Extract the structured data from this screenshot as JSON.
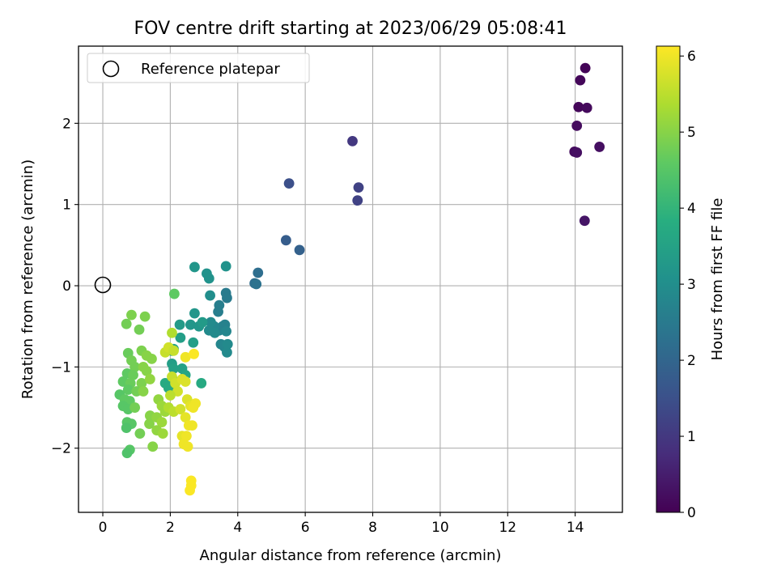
{
  "chart_data": {
    "type": "scatter",
    "title": "FOV centre drift starting at 2023/06/29 05:08:41",
    "xlabel": "Angular distance from reference (arcmin)",
    "ylabel": "Rotation from reference (arcmin)",
    "xlim": [
      -0.72,
      15.4
    ],
    "ylim": [
      -2.79,
      2.95
    ],
    "xticks": [
      0,
      2,
      4,
      6,
      8,
      10,
      12,
      14
    ],
    "yticks": [
      -2,
      -1,
      0,
      1,
      2
    ],
    "grid": true,
    "legend": {
      "placement": "upper-left",
      "entries": [
        "Reference platepar"
      ]
    },
    "reference_point": {
      "x": 0,
      "y": 0
    },
    "colorbar": {
      "label": "Hours from first FF file",
      "colormap": "viridis",
      "range": [
        0,
        6.13
      ],
      "ticks": [
        0,
        1,
        2,
        3,
        4,
        5,
        6
      ]
    },
    "points": [
      {
        "x": 14.3,
        "y": 2.68,
        "h": 0.05
      },
      {
        "x": 14.15,
        "y": 2.53,
        "h": 0.1
      },
      {
        "x": 14.1,
        "y": 2.2,
        "h": 0.1
      },
      {
        "x": 14.35,
        "y": 2.19,
        "h": 0.15
      },
      {
        "x": 14.05,
        "y": 1.97,
        "h": 0.2
      },
      {
        "x": 13.98,
        "y": 1.65,
        "h": 0.2
      },
      {
        "x": 14.05,
        "y": 1.64,
        "h": 0.25
      },
      {
        "x": 14.72,
        "y": 1.71,
        "h": 0.25
      },
      {
        "x": 14.28,
        "y": 0.8,
        "h": 0.35
      },
      {
        "x": 7.4,
        "y": 1.78,
        "h": 1.0
      },
      {
        "x": 7.58,
        "y": 1.21,
        "h": 1.2
      },
      {
        "x": 7.55,
        "y": 1.05,
        "h": 1.2
      },
      {
        "x": 5.52,
        "y": 1.26,
        "h": 1.5
      },
      {
        "x": 5.43,
        "y": 0.56,
        "h": 1.8
      },
      {
        "x": 5.83,
        "y": 0.44,
        "h": 1.9
      },
      {
        "x": 4.6,
        "y": 0.16,
        "h": 2.2
      },
      {
        "x": 4.5,
        "y": 0.03,
        "h": 2.2
      },
      {
        "x": 4.55,
        "y": 0.02,
        "h": 2.3
      },
      {
        "x": 3.65,
        "y": -0.09,
        "h": 2.5
      },
      {
        "x": 3.68,
        "y": -0.15,
        "h": 2.5
      },
      {
        "x": 3.45,
        "y": -0.24,
        "h": 2.6
      },
      {
        "x": 3.42,
        "y": -0.32,
        "h": 2.6
      },
      {
        "x": 3.62,
        "y": -0.48,
        "h": 2.7
      },
      {
        "x": 3.55,
        "y": -0.5,
        "h": 2.7
      },
      {
        "x": 3.45,
        "y": -0.55,
        "h": 2.7
      },
      {
        "x": 3.66,
        "y": -0.56,
        "h": 2.8
      },
      {
        "x": 3.3,
        "y": -0.5,
        "h": 2.8
      },
      {
        "x": 3.2,
        "y": -0.45,
        "h": 2.9
      },
      {
        "x": 3.15,
        "y": -0.55,
        "h": 2.9
      },
      {
        "x": 3.5,
        "y": -0.72,
        "h": 2.8
      },
      {
        "x": 3.6,
        "y": -0.75,
        "h": 2.8
      },
      {
        "x": 3.68,
        "y": -0.82,
        "h": 2.9
      },
      {
        "x": 3.7,
        "y": -0.72,
        "h": 2.9
      },
      {
        "x": 3.32,
        "y": -0.58,
        "h": 2.9
      },
      {
        "x": 3.65,
        "y": 0.24,
        "h": 3.1
      },
      {
        "x": 3.08,
        "y": 0.15,
        "h": 3.1
      },
      {
        "x": 3.15,
        "y": 0.09,
        "h": 3.1
      },
      {
        "x": 2.72,
        "y": 0.23,
        "h": 3.2
      },
      {
        "x": 3.18,
        "y": -0.12,
        "h": 3.0
      },
      {
        "x": 2.72,
        "y": -0.34,
        "h": 3.2
      },
      {
        "x": 2.6,
        "y": -0.48,
        "h": 3.2
      },
      {
        "x": 2.85,
        "y": -0.5,
        "h": 3.2
      },
      {
        "x": 2.95,
        "y": -0.45,
        "h": 3.3
      },
      {
        "x": 2.28,
        "y": -0.48,
        "h": 3.3
      },
      {
        "x": 2.3,
        "y": -0.64,
        "h": 3.4
      },
      {
        "x": 2.68,
        "y": -0.7,
        "h": 3.4
      },
      {
        "x": 2.05,
        "y": -0.8,
        "h": 3.5
      },
      {
        "x": 2.1,
        "y": -0.78,
        "h": 3.5
      },
      {
        "x": 2.05,
        "y": -0.96,
        "h": 3.4
      },
      {
        "x": 2.1,
        "y": -1.02,
        "h": 3.5
      },
      {
        "x": 2.35,
        "y": -1.02,
        "h": 3.5
      },
      {
        "x": 2.45,
        "y": -1.1,
        "h": 3.6
      },
      {
        "x": 2.92,
        "y": -1.2,
        "h": 3.7
      },
      {
        "x": 1.85,
        "y": -1.2,
        "h": 3.7
      },
      {
        "x": 1.95,
        "y": -1.26,
        "h": 3.7
      },
      {
        "x": 2.15,
        "y": -1.18,
        "h": 3.8
      },
      {
        "x": 2.12,
        "y": -0.1,
        "h": 4.6
      },
      {
        "x": 2.05,
        "y": -0.58,
        "h": 5.4
      },
      {
        "x": 0.85,
        "y": -0.36,
        "h": 4.9
      },
      {
        "x": 1.25,
        "y": -0.38,
        "h": 4.9
      },
      {
        "x": 0.7,
        "y": -0.47,
        "h": 4.8
      },
      {
        "x": 1.08,
        "y": -0.54,
        "h": 4.8
      },
      {
        "x": 0.75,
        "y": -0.83,
        "h": 4.7
      },
      {
        "x": 0.85,
        "y": -0.92,
        "h": 4.8
      },
      {
        "x": 1.15,
        "y": -0.8,
        "h": 4.9
      },
      {
        "x": 1.3,
        "y": -0.86,
        "h": 5.0
      },
      {
        "x": 1.45,
        "y": -0.9,
        "h": 5.0
      },
      {
        "x": 0.95,
        "y": -1.0,
        "h": 4.8
      },
      {
        "x": 1.2,
        "y": -1.0,
        "h": 5.0
      },
      {
        "x": 0.72,
        "y": -1.08,
        "h": 4.6
      },
      {
        "x": 0.9,
        "y": -1.1,
        "h": 4.7
      },
      {
        "x": 1.3,
        "y": -1.05,
        "h": 5.0
      },
      {
        "x": 0.6,
        "y": -1.18,
        "h": 4.6
      },
      {
        "x": 0.82,
        "y": -1.2,
        "h": 4.7
      },
      {
        "x": 1.15,
        "y": -1.2,
        "h": 4.9
      },
      {
        "x": 1.4,
        "y": -1.15,
        "h": 5.1
      },
      {
        "x": 0.75,
        "y": -1.28,
        "h": 4.6
      },
      {
        "x": 1.0,
        "y": -1.3,
        "h": 4.8
      },
      {
        "x": 1.2,
        "y": -1.3,
        "h": 5.0
      },
      {
        "x": 0.5,
        "y": -1.34,
        "h": 4.5
      },
      {
        "x": 0.65,
        "y": -1.4,
        "h": 4.6
      },
      {
        "x": 0.8,
        "y": -1.42,
        "h": 4.6
      },
      {
        "x": 0.6,
        "y": -1.48,
        "h": 4.5
      },
      {
        "x": 0.75,
        "y": -1.52,
        "h": 4.5
      },
      {
        "x": 0.95,
        "y": -1.5,
        "h": 4.8
      },
      {
        "x": 1.4,
        "y": -1.6,
        "h": 5.0
      },
      {
        "x": 1.38,
        "y": -1.7,
        "h": 5.0
      },
      {
        "x": 0.72,
        "y": -1.68,
        "h": 4.5
      },
      {
        "x": 0.85,
        "y": -1.7,
        "h": 4.5
      },
      {
        "x": 0.7,
        "y": -1.75,
        "h": 4.4
      },
      {
        "x": 1.1,
        "y": -1.82,
        "h": 4.8
      },
      {
        "x": 0.8,
        "y": -2.02,
        "h": 4.5
      },
      {
        "x": 0.72,
        "y": -2.06,
        "h": 4.4
      },
      {
        "x": 1.48,
        "y": -1.98,
        "h": 5.0
      },
      {
        "x": 1.65,
        "y": -1.4,
        "h": 5.1
      },
      {
        "x": 1.75,
        "y": -1.48,
        "h": 5.2
      },
      {
        "x": 1.85,
        "y": -1.55,
        "h": 5.2
      },
      {
        "x": 1.6,
        "y": -1.62,
        "h": 5.1
      },
      {
        "x": 1.75,
        "y": -1.68,
        "h": 5.2
      },
      {
        "x": 1.6,
        "y": -1.78,
        "h": 5.1
      },
      {
        "x": 1.78,
        "y": -1.82,
        "h": 5.2
      },
      {
        "x": 1.85,
        "y": -0.82,
        "h": 5.6
      },
      {
        "x": 1.95,
        "y": -0.76,
        "h": 5.7
      },
      {
        "x": 2.1,
        "y": -0.8,
        "h": 5.6
      },
      {
        "x": 2.05,
        "y": -1.12,
        "h": 5.6
      },
      {
        "x": 2.15,
        "y": -1.2,
        "h": 5.7
      },
      {
        "x": 2.35,
        "y": -1.15,
        "h": 5.8
      },
      {
        "x": 2.45,
        "y": -1.18,
        "h": 5.8
      },
      {
        "x": 2.22,
        "y": -1.3,
        "h": 5.7
      },
      {
        "x": 2.0,
        "y": -1.35,
        "h": 5.5
      },
      {
        "x": 1.95,
        "y": -1.5,
        "h": 5.4
      },
      {
        "x": 2.1,
        "y": -1.55,
        "h": 5.5
      },
      {
        "x": 2.3,
        "y": -1.52,
        "h": 5.7
      },
      {
        "x": 2.5,
        "y": -1.4,
        "h": 5.8
      },
      {
        "x": 2.6,
        "y": -1.48,
        "h": 5.9
      },
      {
        "x": 2.75,
        "y": -1.45,
        "h": 6.0
      },
      {
        "x": 2.68,
        "y": -1.5,
        "h": 6.0
      },
      {
        "x": 2.45,
        "y": -1.62,
        "h": 5.9
      },
      {
        "x": 2.55,
        "y": -1.72,
        "h": 6.0
      },
      {
        "x": 2.65,
        "y": -1.72,
        "h": 6.0
      },
      {
        "x": 2.35,
        "y": -1.85,
        "h": 5.9
      },
      {
        "x": 2.48,
        "y": -1.85,
        "h": 6.0
      },
      {
        "x": 2.4,
        "y": -1.95,
        "h": 6.0
      },
      {
        "x": 2.52,
        "y": -1.98,
        "h": 6.0
      },
      {
        "x": 2.45,
        "y": -0.88,
        "h": 6.0
      },
      {
        "x": 2.7,
        "y": -0.84,
        "h": 6.1
      },
      {
        "x": 2.62,
        "y": -2.4,
        "h": 6.1
      },
      {
        "x": 2.62,
        "y": -2.46,
        "h": 6.1
      },
      {
        "x": 2.58,
        "y": -2.52,
        "h": 6.1
      }
    ]
  }
}
